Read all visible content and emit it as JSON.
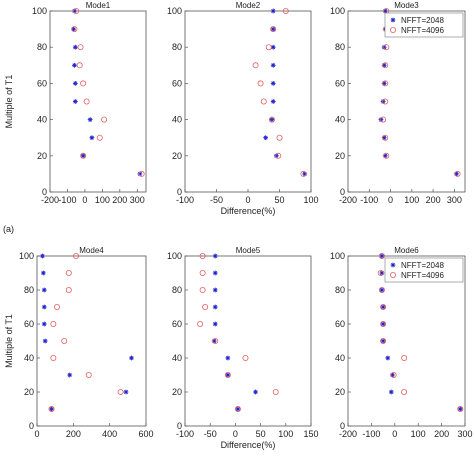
{
  "figure_label": "(a)",
  "series_colors": {
    "NFFT=2048": "#2222cc",
    "NFFT=4096": "#e06060"
  },
  "chart_data": [
    {
      "type": "scatter",
      "title": "Mode1",
      "xlabel": "",
      "ylabel": "Multiple of T1",
      "xlim": [
        -200,
        350
      ],
      "ylim": [
        0,
        100
      ],
      "xticks": [
        "-200",
        "-100",
        "0",
        "100",
        "200",
        "300"
      ],
      "yticks": [
        "0",
        "20",
        "40",
        "60",
        "80",
        "100"
      ],
      "legend": null,
      "series": [
        {
          "name": "NFFT=2048",
          "marker": "asterisk",
          "x": [
            -60,
            -65,
            -55,
            -60,
            -55,
            -55,
            30,
            40,
            -10,
            315
          ],
          "y": [
            100,
            90,
            80,
            70,
            60,
            50,
            40,
            30,
            20,
            10
          ]
        },
        {
          "name": "NFFT=4096",
          "marker": "circle",
          "x": [
            -50,
            -60,
            -25,
            -30,
            -10,
            10,
            110,
            85,
            -10,
            325
          ],
          "y": [
            100,
            90,
            80,
            70,
            60,
            50,
            40,
            30,
            20,
            10
          ]
        }
      ]
    },
    {
      "type": "scatter",
      "title": "Mode2",
      "xlabel": "Difference(%)",
      "ylabel": "",
      "xlim": [
        -100,
        100
      ],
      "ylim": [
        0,
        100
      ],
      "xticks": [
        "-100",
        "-50",
        "0",
        "50",
        "100"
      ],
      "yticks": [
        "0",
        "20",
        "40",
        "60",
        "80",
        "100"
      ],
      "legend": null,
      "series": [
        {
          "name": "NFFT=2048",
          "marker": "asterisk",
          "x": [
            40,
            40,
            40,
            40,
            40,
            40,
            38,
            28,
            45,
            90
          ],
          "y": [
            100,
            90,
            80,
            70,
            60,
            50,
            40,
            30,
            20,
            10
          ]
        },
        {
          "name": "NFFT=4096",
          "marker": "circle",
          "x": [
            60,
            40,
            33,
            12,
            20,
            25,
            38,
            50,
            48,
            88
          ],
          "y": [
            100,
            90,
            80,
            70,
            60,
            50,
            40,
            30,
            20,
            10
          ]
        }
      ]
    },
    {
      "type": "scatter",
      "title": "Mode3",
      "xlabel": "",
      "ylabel": "",
      "xlim": [
        -200,
        350
      ],
      "ylim": [
        0,
        100
      ],
      "xticks": [
        "-200",
        "-100",
        "0",
        "100",
        "200",
        "300"
      ],
      "yticks": [
        "0",
        "20",
        "40",
        "60",
        "80",
        "100"
      ],
      "legend": "top-right",
      "series": [
        {
          "name": "NFFT=2048",
          "marker": "asterisk",
          "x": [
            -25,
            -25,
            -30,
            -30,
            -30,
            -35,
            -45,
            -30,
            -25,
            310
          ],
          "y": [
            100,
            90,
            80,
            70,
            60,
            50,
            40,
            30,
            20,
            10
          ]
        },
        {
          "name": "NFFT=4096",
          "marker": "circle",
          "x": [
            -20,
            -20,
            -20,
            -25,
            -25,
            -25,
            -35,
            -25,
            -20,
            315
          ],
          "y": [
            100,
            90,
            80,
            70,
            60,
            50,
            40,
            30,
            20,
            10
          ]
        }
      ]
    },
    {
      "type": "scatter",
      "title": "Mode4",
      "xlabel": "",
      "ylabel": "Multiple of T1",
      "xlim": [
        0,
        600
      ],
      "ylim": [
        0,
        100
      ],
      "xticks": [
        "0",
        "200",
        "400",
        "600"
      ],
      "yticks": [
        "0",
        "20",
        "40",
        "60",
        "80",
        "100"
      ],
      "legend": null,
      "series": [
        {
          "name": "NFFT=2048",
          "marker": "asterisk",
          "x": [
            30,
            35,
            40,
            40,
            40,
            45,
            520,
            180,
            490,
            80
          ],
          "y": [
            100,
            90,
            80,
            70,
            60,
            50,
            40,
            30,
            20,
            10
          ]
        },
        {
          "name": "NFFT=4096",
          "marker": "circle",
          "x": [
            215,
            175,
            175,
            110,
            90,
            150,
            90,
            285,
            460,
            80
          ],
          "y": [
            100,
            90,
            80,
            70,
            60,
            50,
            40,
            30,
            20,
            10
          ]
        }
      ]
    },
    {
      "type": "scatter",
      "title": "Mode5",
      "xlabel": "Difference(%)",
      "ylabel": "",
      "xlim": [
        -100,
        150
      ],
      "ylim": [
        0,
        100
      ],
      "xticks": [
        "-100",
        "-50",
        "0",
        "50",
        "100",
        "150"
      ],
      "yticks": [
        "0",
        "20",
        "40",
        "60",
        "80",
        "100"
      ],
      "legend": null,
      "series": [
        {
          "name": "NFFT=2048",
          "marker": "asterisk",
          "x": [
            -40,
            -40,
            -40,
            -40,
            -40,
            -42,
            -15,
            -15,
            40,
            5
          ],
          "y": [
            100,
            90,
            80,
            70,
            60,
            50,
            40,
            30,
            20,
            10
          ]
        },
        {
          "name": "NFFT=4096",
          "marker": "circle",
          "x": [
            -65,
            -65,
            -65,
            -60,
            -70,
            -40,
            20,
            -15,
            80,
            5
          ],
          "y": [
            100,
            90,
            80,
            70,
            60,
            50,
            40,
            30,
            20,
            10
          ]
        }
      ]
    },
    {
      "type": "scatter",
      "title": "Mode6",
      "xlabel": "",
      "ylabel": "",
      "xlim": [
        -200,
        300
      ],
      "ylim": [
        0,
        100
      ],
      "xticks": [
        "-200",
        "-100",
        "0",
        "100",
        "200",
        "300"
      ],
      "yticks": [
        "0",
        "20",
        "40",
        "60",
        "80",
        "100"
      ],
      "legend": "top-right",
      "series": [
        {
          "name": "NFFT=2048",
          "marker": "asterisk",
          "x": [
            -55,
            -55,
            -55,
            -50,
            -50,
            -50,
            -30,
            -10,
            -15,
            280
          ],
          "y": [
            100,
            90,
            80,
            70,
            60,
            50,
            40,
            30,
            20,
            10
          ]
        },
        {
          "name": "NFFT=4096",
          "marker": "circle",
          "x": [
            -55,
            -60,
            -55,
            -50,
            -50,
            -50,
            40,
            -5,
            40,
            280
          ],
          "y": [
            100,
            90,
            80,
            70,
            60,
            50,
            40,
            30,
            20,
            10
          ]
        }
      ]
    }
  ]
}
